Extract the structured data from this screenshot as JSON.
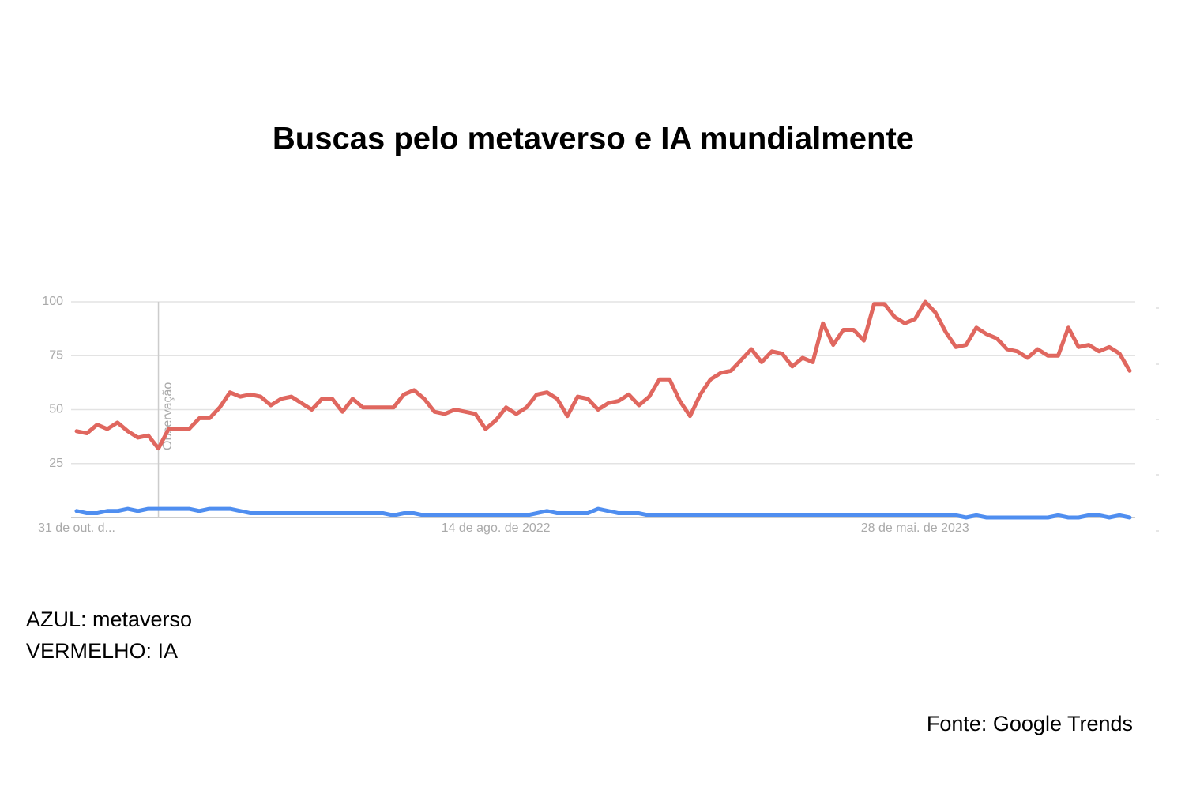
{
  "chart_data": {
    "type": "line",
    "title": "Buscas pelo metaverso e IA mundialmente",
    "source": "Fonte: Google Trends",
    "ylim": [
      0,
      100
    ],
    "yticks": [
      25,
      50,
      75,
      100
    ],
    "grid": true,
    "xticks": [
      {
        "value": 0,
        "label": "31 de out. d..."
      },
      {
        "value": 41,
        "label": "14 de ago. de 2022"
      },
      {
        "value": 82,
        "label": "28 de mai. de 2023"
      }
    ],
    "annotation": {
      "label": "Observação",
      "x": 8
    },
    "series": [
      {
        "name": "AZUL: metaverso",
        "color": "#4f8ef0",
        "values": [
          3,
          2,
          2,
          3,
          3,
          4,
          3,
          4,
          4,
          4,
          4,
          4,
          3,
          4,
          4,
          4,
          3,
          2,
          2,
          2,
          2,
          2,
          2,
          2,
          2,
          2,
          2,
          2,
          2,
          2,
          2,
          1,
          2,
          2,
          1,
          1,
          1,
          1,
          1,
          1,
          1,
          1,
          1,
          1,
          1,
          2,
          3,
          2,
          2,
          2,
          2,
          4,
          3,
          2,
          2,
          2,
          1,
          1,
          1,
          1,
          1,
          1,
          1,
          1,
          1,
          1,
          1,
          1,
          1,
          1,
          1,
          1,
          1,
          1,
          1,
          1,
          1,
          1,
          1,
          1,
          1,
          1,
          1,
          1,
          1,
          1,
          1,
          0,
          1,
          0,
          0,
          0,
          0,
          0,
          0,
          0,
          1,
          0,
          0,
          1,
          1,
          0,
          1,
          0
        ]
      },
      {
        "name": "VERMELHO: IA",
        "color": "#e0675f",
        "values": [
          40,
          39,
          43,
          41,
          44,
          40,
          37,
          38,
          32,
          41,
          41,
          41,
          46,
          46,
          51,
          58,
          56,
          57,
          56,
          52,
          55,
          56,
          53,
          50,
          55,
          55,
          49,
          55,
          51,
          51,
          51,
          51,
          57,
          59,
          55,
          49,
          48,
          50,
          49,
          48,
          41,
          45,
          51,
          48,
          51,
          57,
          58,
          55,
          47,
          56,
          55,
          50,
          53,
          54,
          57,
          52,
          56,
          64,
          64,
          54,
          47,
          57,
          64,
          67,
          68,
          73,
          78,
          72,
          77,
          76,
          70,
          74,
          72,
          90,
          80,
          87,
          87,
          82,
          99,
          99,
          93,
          90,
          92,
          100,
          95,
          86,
          79,
          80,
          88,
          85,
          83,
          78,
          77,
          74,
          78,
          75,
          75,
          88,
          79,
          80,
          77,
          79,
          76,
          68
        ]
      }
    ]
  }
}
